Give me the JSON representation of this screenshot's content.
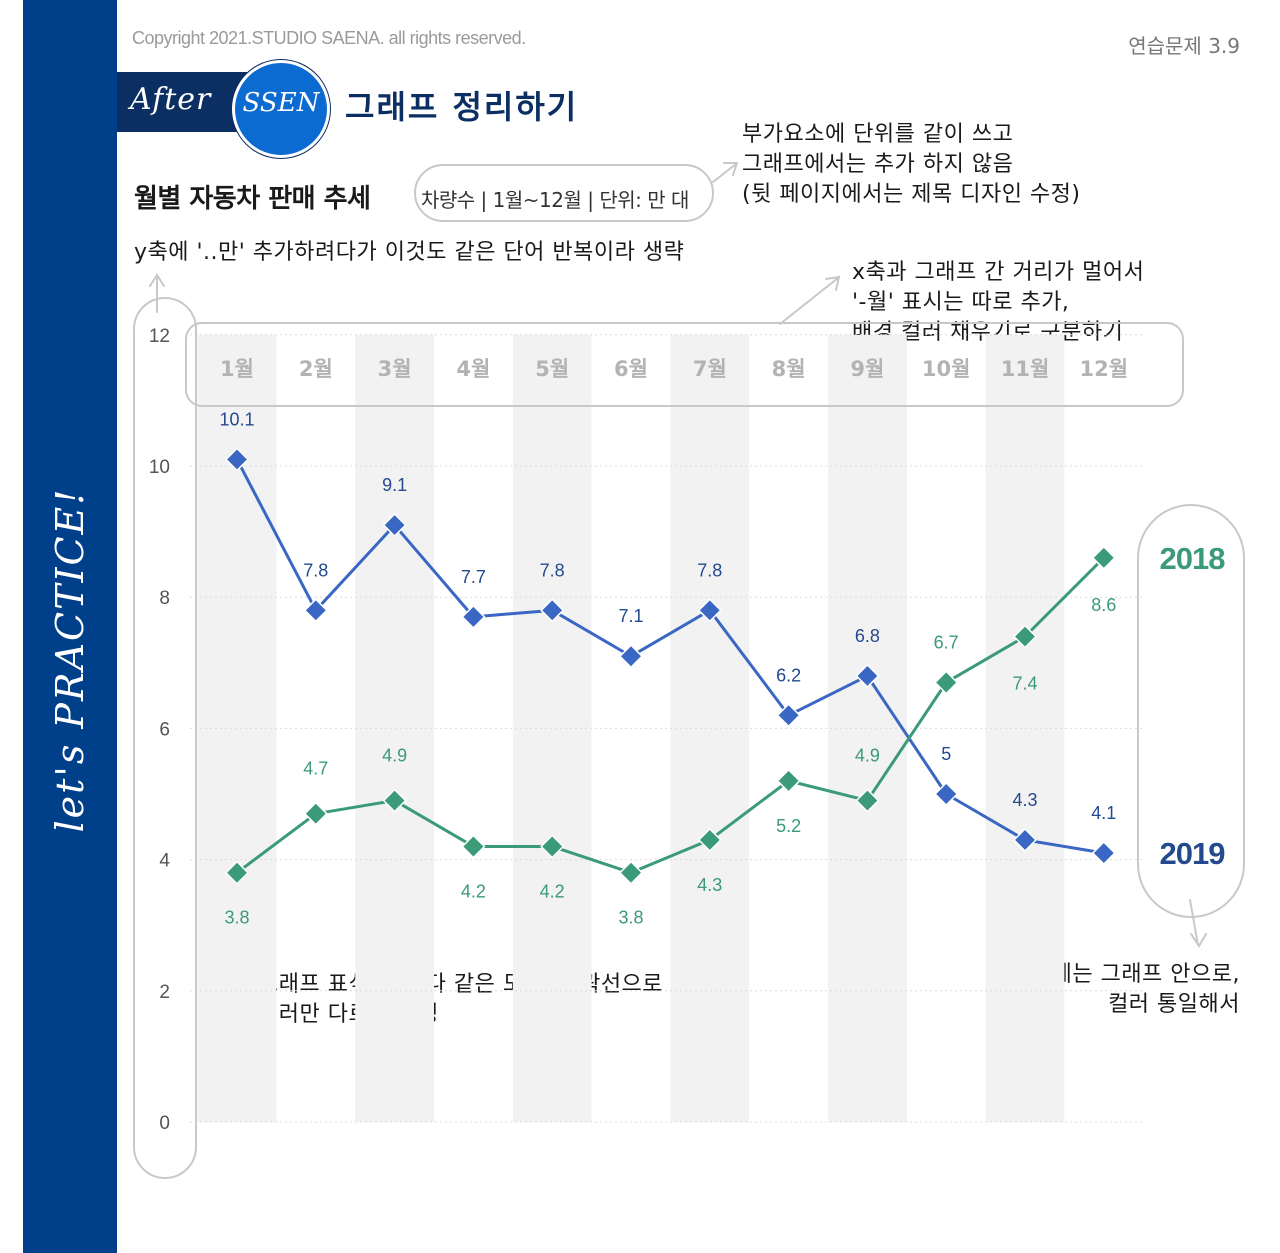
{
  "header": {
    "copyright": "Copyright 2021.STUDIO SAENA. all rights reserved.",
    "exercise": "연습문제 3.9",
    "brand_after": "After",
    "brand_ssen": "SSEN",
    "heading": "그래프 정리하기",
    "side_text": "let's PRACTICE!"
  },
  "notes": {
    "unit": "부가요소에 단위를 같이 쓰고\n그래프에서는 추가 하지 않음\n(뒷 페이지에서는 제목 디자인 수정)",
    "yaxis": "y축에 '..만' 추가하려다가 이것도 같은 단어 반복이라 생략",
    "xaxis": "x축과 그래프 간 거리가 멀어서\n'-월' 표시는 따로 추가,\n배경 컬러 채우기로 구분하기",
    "markers": "그래프 표식은 둘 다 같은 모양, 윤곽선으로 통일\n컬러만 다르게 설정",
    "legend": "범례는 그래프 안으로,\n컬러 통일해서"
  },
  "colors": {
    "blue": "#3a66c4",
    "green": "#3b9a77",
    "blue_label": "#234a8f",
    "green_label": "#3b9a77",
    "band": "#f2f2f2",
    "grid": "#dcdcdc",
    "note_outline": "#c8c8c8"
  },
  "chart_data": {
    "type": "line",
    "title": "월별 자동차 판매 추세",
    "subtitle": "차량수 | 1월~12월 | 단위: 만 대",
    "categories": [
      "1월",
      "2월",
      "3월",
      "4월",
      "5월",
      "6월",
      "7월",
      "8월",
      "9월",
      "10월",
      "11월",
      "12월"
    ],
    "ylim": [
      0,
      12
    ],
    "yticks": [
      0,
      2,
      4,
      6,
      8,
      10,
      12
    ],
    "grid": "horizontal",
    "legend_position": "right, next to line ends",
    "series": [
      {
        "name": "2019",
        "color": "#3a66c4",
        "values": [
          10.1,
          7.8,
          9.1,
          7.7,
          7.8,
          7.1,
          7.8,
          6.2,
          6.8,
          5,
          4.3,
          4.1
        ],
        "labels": [
          "10.1",
          "7.8",
          "9.1",
          "7.7",
          "7.8",
          "7.1",
          "7.8",
          "6.2",
          "6.8",
          "5",
          "4.3",
          "4.1"
        ]
      },
      {
        "name": "2018",
        "color": "#3b9a77",
        "values": [
          3.8,
          4.7,
          4.9,
          4.2,
          4.2,
          3.8,
          4.3,
          5.2,
          4.9,
          6.7,
          7.4,
          8.6
        ],
        "labels": [
          "3.8",
          "4.7",
          "4.9",
          "4.2",
          "4.2",
          "3.8",
          "4.3",
          "5.2",
          "4.9",
          "6.7",
          "7.4",
          "8.6"
        ]
      }
    ]
  }
}
